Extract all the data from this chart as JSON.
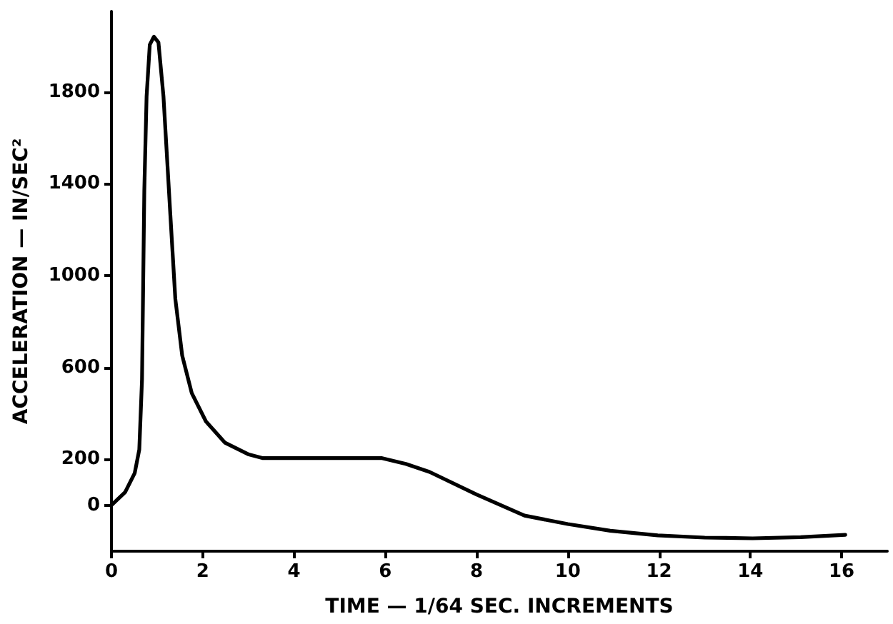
{
  "chart_data": {
    "type": "line",
    "xlabel": "TIME — 1/64 SEC. INCREMENTS",
    "ylabel": "ACCELERATION — IN/SEC²",
    "x": [
      0,
      0.3,
      0.51,
      0.61,
      0.67,
      0.72,
      0.77,
      0.84,
      0.93,
      1.03,
      1.14,
      1.29,
      1.4,
      1.55,
      1.76,
      2.07,
      2.49,
      3.01,
      3.32,
      4,
      5,
      5.93,
      6.45,
      6.97,
      8,
      9.05,
      10,
      10.93,
      11.97,
      13,
      14.05,
      15.1,
      16.08
    ],
    "series": [
      {
        "color": "#000000",
        "values": [
          0,
          57,
          140,
          242,
          549,
          1370,
          1780,
          2005,
          2040,
          2015,
          1780,
          1267,
          898,
          652,
          488,
          365,
          272,
          221,
          205,
          205,
          205,
          205,
          180,
          145,
          47,
          -45,
          -82,
          -111,
          -131,
          -141,
          -144,
          -139,
          -129
        ]
      }
    ],
    "xlim": [
      0,
      17
    ],
    "xticks": [
      0,
      2,
      4,
      6,
      8,
      10,
      12,
      14,
      16
    ],
    "ylim": [
      -200,
      2150
    ],
    "yticks": [
      0,
      200,
      600,
      1000,
      1400,
      1800
    ],
    "grid": false,
    "marker": "none",
    "line_style": "solid"
  }
}
